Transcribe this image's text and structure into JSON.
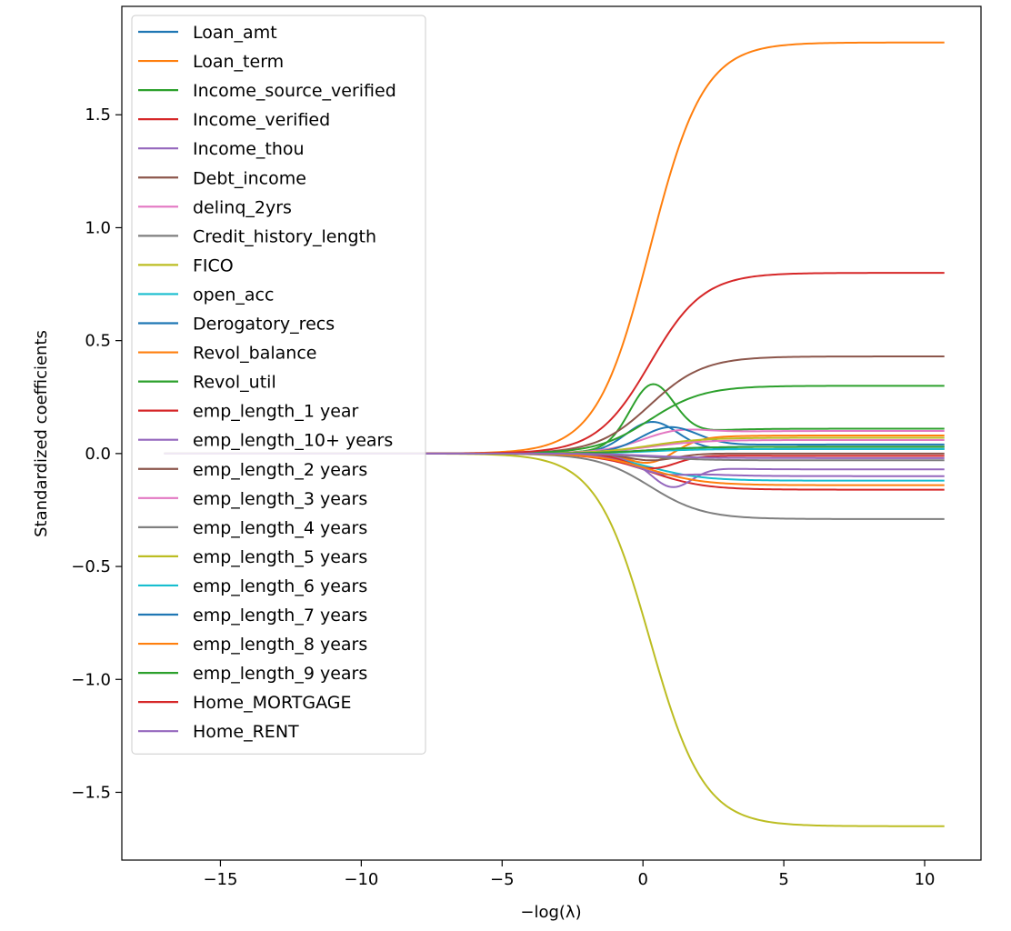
{
  "chart_data": {
    "type": "line",
    "title": "",
    "xlabel": "−log(λ)",
    "ylabel": "Standardized coefficients",
    "xlim": [
      -18.5,
      12
    ],
    "ylim": [
      -1.8,
      1.98
    ],
    "xticks": [
      -15,
      -10,
      -5,
      0,
      5,
      10
    ],
    "xtick_labels": [
      "−15",
      "−10",
      "−5",
      "0",
      "5",
      "10"
    ],
    "yticks": [
      -1.5,
      -1.0,
      -0.5,
      0.0,
      0.5,
      1.0,
      1.5
    ],
    "ytick_labels": [
      "−1.5",
      "−1.0",
      "−0.5",
      "0.0",
      "0.5",
      "1.0",
      "1.5"
    ],
    "grid": false,
    "legend_position": "upper-left",
    "x_range_data": [
      -17,
      10.7
    ],
    "series": [
      {
        "name": "Loan_amt",
        "color": "#1f77b4",
        "final": 0.02,
        "bump": 0.13,
        "bump_center": 0.3,
        "bump_width": 1.3
      },
      {
        "name": "Loan_term",
        "color": "#ff7f0e",
        "final": 1.82,
        "bump": 0.0,
        "bump_center": 0,
        "bump_width": 1
      },
      {
        "name": "Income_source_verified",
        "color": "#2ca02c",
        "final": 0.11,
        "bump": 0.25,
        "bump_center": 0.3,
        "bump_width": 1.1
      },
      {
        "name": "Income_verified",
        "color": "#d62728",
        "final": -0.16,
        "bump": 0.0,
        "bump_center": 0,
        "bump_width": 1
      },
      {
        "name": "Income_thou",
        "color": "#9467bd",
        "final": -0.07,
        "bump": -0.1,
        "bump_center": 1.0,
        "bump_width": 1.0
      },
      {
        "name": "Debt_income",
        "color": "#8c564b",
        "final": 0.43,
        "bump": 0.0,
        "bump_center": 0,
        "bump_width": 1
      },
      {
        "name": "delinq_2yrs",
        "color": "#e377c2",
        "final": 0.1,
        "bump": 0.03,
        "bump_center": 1.0,
        "bump_width": 1.5
      },
      {
        "name": "Credit_history_length",
        "color": "#7f7f7f",
        "final": -0.29,
        "bump": 0.0,
        "bump_center": 0,
        "bump_width": 1
      },
      {
        "name": "FICO",
        "color": "#bcbd22",
        "final": -1.65,
        "bump": 0.0,
        "bump_center": 0,
        "bump_width": 1
      },
      {
        "name": "open_acc",
        "color": "#17becf",
        "final": -0.12,
        "bump": 0.0,
        "bump_center": 0,
        "bump_width": 1
      },
      {
        "name": "Derogatory_recs",
        "color": "#1f77b4",
        "final": 0.04,
        "bump": 0.09,
        "bump_center": 0.9,
        "bump_width": 1.4
      },
      {
        "name": "Revol_balance",
        "color": "#ff7f0e",
        "final": 0.08,
        "bump": -0.08,
        "bump_center": 0.3,
        "bump_width": 1.2
      },
      {
        "name": "Revol_util",
        "color": "#2ca02c",
        "final": 0.3,
        "bump": 0.0,
        "bump_center": 0,
        "bump_width": 1
      },
      {
        "name": "emp_length_1 year",
        "color": "#d62728",
        "final": -0.01,
        "bump": -0.06,
        "bump_center": 0.3,
        "bump_width": 1.2
      },
      {
        "name": "emp_length_10+ years",
        "color": "#9467bd",
        "final": -0.1,
        "bump": -0.03,
        "bump_center": 0.5,
        "bump_width": 1.2
      },
      {
        "name": "emp_length_2 years",
        "color": "#8c564b",
        "final": 0.0,
        "bump": -0.03,
        "bump_center": 0.3,
        "bump_width": 1.2
      },
      {
        "name": "emp_length_3 years",
        "color": "#e377c2",
        "final": 0.06,
        "bump": 0.0,
        "bump_center": 0,
        "bump_width": 1
      },
      {
        "name": "emp_length_4 years",
        "color": "#7f7f7f",
        "final": -0.03,
        "bump": 0.0,
        "bump_center": 0,
        "bump_width": 1
      },
      {
        "name": "emp_length_5 years",
        "color": "#bcbd22",
        "final": 0.07,
        "bump": 0.0,
        "bump_center": 0,
        "bump_width": 1
      },
      {
        "name": "emp_length_6 years",
        "color": "#17becf",
        "final": 0.02,
        "bump": 0.0,
        "bump_center": 0,
        "bump_width": 1
      },
      {
        "name": "emp_length_7 years",
        "color": "#1f77b4",
        "final": 0.03,
        "bump": 0.0,
        "bump_center": 0,
        "bump_width": 1
      },
      {
        "name": "emp_length_8 years",
        "color": "#ff7f0e",
        "final": -0.14,
        "bump": 0.0,
        "bump_center": 0,
        "bump_width": 1
      },
      {
        "name": "emp_length_9 years",
        "color": "#2ca02c",
        "final": 0.03,
        "bump": 0.0,
        "bump_center": 0,
        "bump_width": 1
      },
      {
        "name": "Home_MORTGAGE",
        "color": "#d62728",
        "final": 0.8,
        "bump": 0.0,
        "bump_center": 0,
        "bump_width": 1
      },
      {
        "name": "Home_RENT",
        "color": "#9467bd",
        "final": -0.02,
        "bump": 0.0,
        "bump_center": 0,
        "bump_width": 1
      }
    ]
  }
}
